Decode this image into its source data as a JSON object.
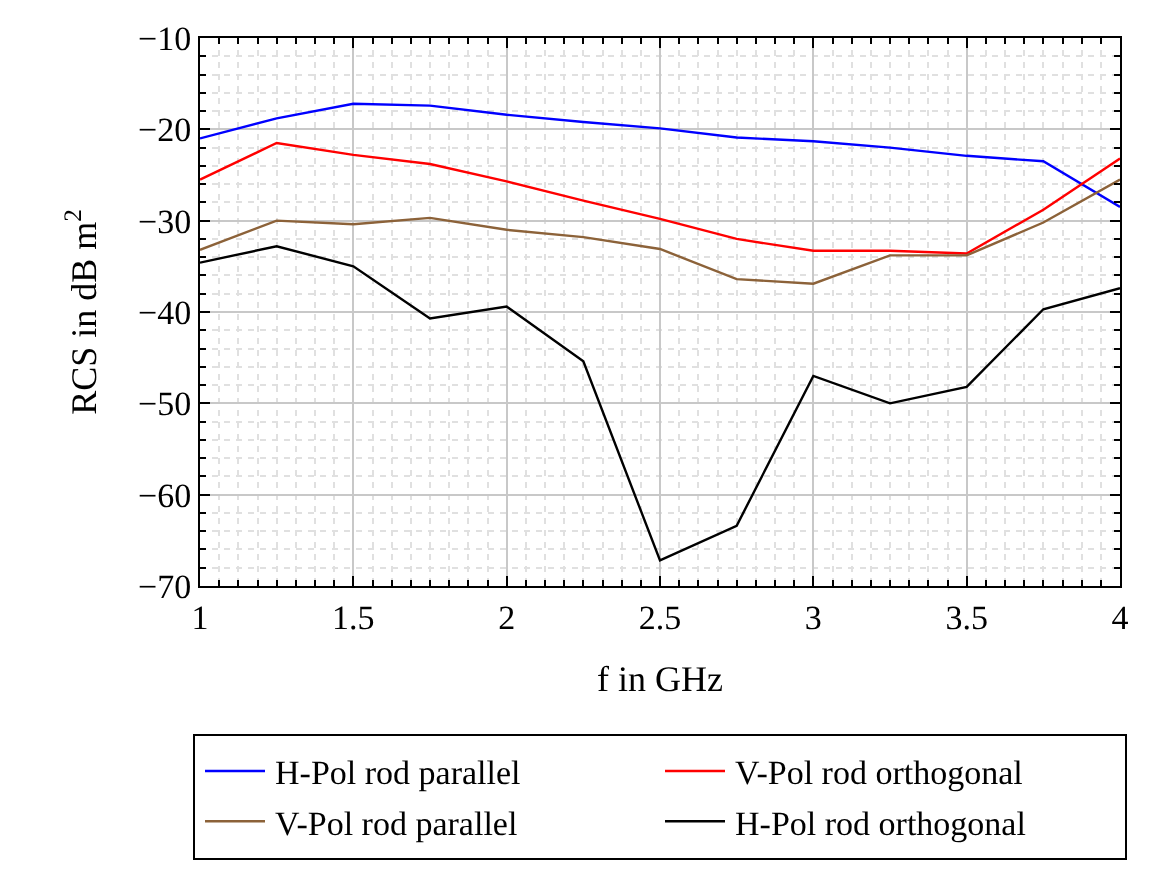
{
  "chart_data": {
    "type": "line",
    "xlabel": "f in GHz",
    "ylabel": "RCS in dB m$^{2}$",
    "x": [
      1,
      1.25,
      1.5,
      1.75,
      2,
      2.25,
      2.5,
      2.75,
      3,
      3.25,
      3.5,
      3.75,
      4
    ],
    "series": [
      {
        "name": "H-Pol rod parallel",
        "color": "#0000ff",
        "values": [
          -21,
          -18.8,
          -17.2,
          -17.4,
          -18.4,
          -19.2,
          -19.9,
          -20.9,
          -21.3,
          -22,
          -22.9,
          -23.5,
          -28.5
        ]
      },
      {
        "name": "V-Pol rod orthogonal",
        "color": "#ff0000",
        "values": [
          -25.5,
          -21.5,
          -22.8,
          -23.8,
          -25.7,
          -27.8,
          -29.8,
          -32,
          -33.3,
          -33.3,
          -33.6,
          -28.8,
          -23.2
        ]
      },
      {
        "name": "V-Pol rod parallel",
        "color": "#8c6239",
        "values": [
          -33.2,
          -30,
          -30.4,
          -29.7,
          -31,
          -31.8,
          -33.1,
          -36.4,
          -36.9,
          -33.8,
          -33.8,
          -30.2,
          -25.5
        ]
      },
      {
        "name": "H-Pol rod orthogonal",
        "color": "#000000",
        "values": [
          -34.6,
          -32.8,
          -35,
          -40.7,
          -39.4,
          -45.4,
          -67.2,
          -63.4,
          -47,
          -50,
          -48.2,
          -39.7,
          -37.4
        ]
      }
    ],
    "xlim": [
      1,
      4
    ],
    "xticks": [
      1,
      1.5,
      2,
      2.5,
      3,
      3.5,
      4
    ],
    "ylim": [
      -70,
      -10
    ],
    "yticks": [
      -70,
      -60,
      -50,
      -40,
      -30,
      -20,
      -10
    ],
    "grid": true,
    "legend": "bottom",
    "marker": "none",
    "line_style": "solid"
  }
}
